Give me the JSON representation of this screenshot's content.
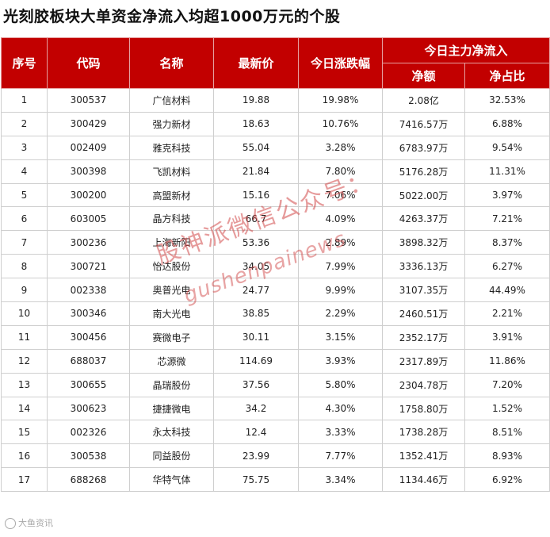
{
  "title": "光刻胶板块大单资金净流入均超1000万元的个股",
  "header": {
    "seq": "序号",
    "code": "代码",
    "name": "名称",
    "price": "最新价",
    "change": "今日涨跌幅",
    "inflow_group": "今日主力净流入",
    "net_amount": "净额",
    "net_ratio": "净占比"
  },
  "rows": [
    {
      "seq": "1",
      "code": "300537",
      "name": "广信材料",
      "price": "19.88",
      "change": "19.98%",
      "amount": "2.08亿",
      "ratio": "32.53%"
    },
    {
      "seq": "2",
      "code": "300429",
      "name": "强力新材",
      "price": "18.63",
      "change": "10.76%",
      "amount": "7416.57万",
      "ratio": "6.88%"
    },
    {
      "seq": "3",
      "code": "002409",
      "name": "雅克科技",
      "price": "55.04",
      "change": "3.28%",
      "amount": "6783.97万",
      "ratio": "9.54%"
    },
    {
      "seq": "4",
      "code": "300398",
      "name": "飞凯材料",
      "price": "21.84",
      "change": "7.80%",
      "amount": "5176.28万",
      "ratio": "11.31%"
    },
    {
      "seq": "5",
      "code": "300200",
      "name": "高盟新材",
      "price": "15.16",
      "change": "7.06%",
      "amount": "5022.00万",
      "ratio": "3.97%"
    },
    {
      "seq": "6",
      "code": "603005",
      "name": "晶方科技",
      "price": "66.7",
      "change": "4.09%",
      "amount": "4263.37万",
      "ratio": "7.21%"
    },
    {
      "seq": "7",
      "code": "300236",
      "name": "上海新阳",
      "price": "53.36",
      "change": "2.89%",
      "amount": "3898.32万",
      "ratio": "8.37%"
    },
    {
      "seq": "8",
      "code": "300721",
      "name": "怡达股份",
      "price": "34.05",
      "change": "7.99%",
      "amount": "3336.13万",
      "ratio": "6.27%"
    },
    {
      "seq": "9",
      "code": "002338",
      "name": "奥普光电",
      "price": "24.77",
      "change": "9.99%",
      "amount": "3107.35万",
      "ratio": "44.49%"
    },
    {
      "seq": "10",
      "code": "300346",
      "name": "南大光电",
      "price": "38.85",
      "change": "2.29%",
      "amount": "2460.51万",
      "ratio": "2.21%"
    },
    {
      "seq": "11",
      "code": "300456",
      "name": "赛微电子",
      "price": "30.11",
      "change": "3.15%",
      "amount": "2352.17万",
      "ratio": "3.91%"
    },
    {
      "seq": "12",
      "code": "688037",
      "name": "芯源微",
      "price": "114.69",
      "change": "3.93%",
      "amount": "2317.89万",
      "ratio": "11.86%"
    },
    {
      "seq": "13",
      "code": "300655",
      "name": "晶瑞股份",
      "price": "37.56",
      "change": "5.80%",
      "amount": "2304.78万",
      "ratio": "7.20%"
    },
    {
      "seq": "14",
      "code": "300623",
      "name": "捷捷微电",
      "price": "34.2",
      "change": "4.30%",
      "amount": "1758.80万",
      "ratio": "1.52%"
    },
    {
      "seq": "15",
      "code": "002326",
      "name": "永太科技",
      "price": "12.4",
      "change": "3.33%",
      "amount": "1738.28万",
      "ratio": "8.51%"
    },
    {
      "seq": "16",
      "code": "300538",
      "name": "同益股份",
      "price": "23.99",
      "change": "7.77%",
      "amount": "1352.41万",
      "ratio": "8.93%"
    },
    {
      "seq": "17",
      "code": "688268",
      "name": "华特气体",
      "price": "75.75",
      "change": "3.34%",
      "amount": "1134.46万",
      "ratio": "6.92%"
    }
  ],
  "watermark": {
    "cn": "股神派微信公众号：",
    "en": "gushenpainews"
  },
  "logo_text": "大鱼资讯"
}
